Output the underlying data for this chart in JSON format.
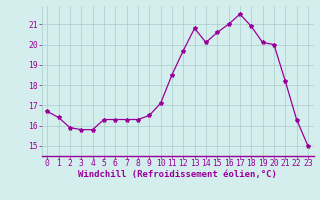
{
  "x": [
    0,
    1,
    2,
    3,
    4,
    5,
    6,
    7,
    8,
    9,
    10,
    11,
    12,
    13,
    14,
    15,
    16,
    17,
    18,
    19,
    20,
    21,
    22,
    23
  ],
  "y": [
    16.7,
    16.4,
    15.9,
    15.8,
    15.8,
    16.3,
    16.3,
    16.3,
    16.3,
    16.5,
    17.1,
    18.5,
    19.7,
    20.8,
    20.1,
    20.6,
    21.0,
    21.5,
    20.9,
    20.1,
    20.0,
    18.2,
    16.3,
    15.0
  ],
  "line_color": "#990099",
  "marker": "*",
  "marker_size": 3,
  "bg_color": "#d4eeee",
  "grid_color": "#aacccc",
  "xlabel": "Windchill (Refroidissement éolien,°C)",
  "xlabel_color": "#990099",
  "xlabel_fontsize": 6.5,
  "ytick_labels": [
    15,
    16,
    17,
    18,
    19,
    20,
    21
  ],
  "ylim": [
    14.5,
    21.9
  ],
  "xlim": [
    -0.5,
    23.5
  ],
  "tick_color": "#990099",
  "tick_fontsize": 5.8,
  "spine_color": "#990099",
  "linewidth": 0.9
}
